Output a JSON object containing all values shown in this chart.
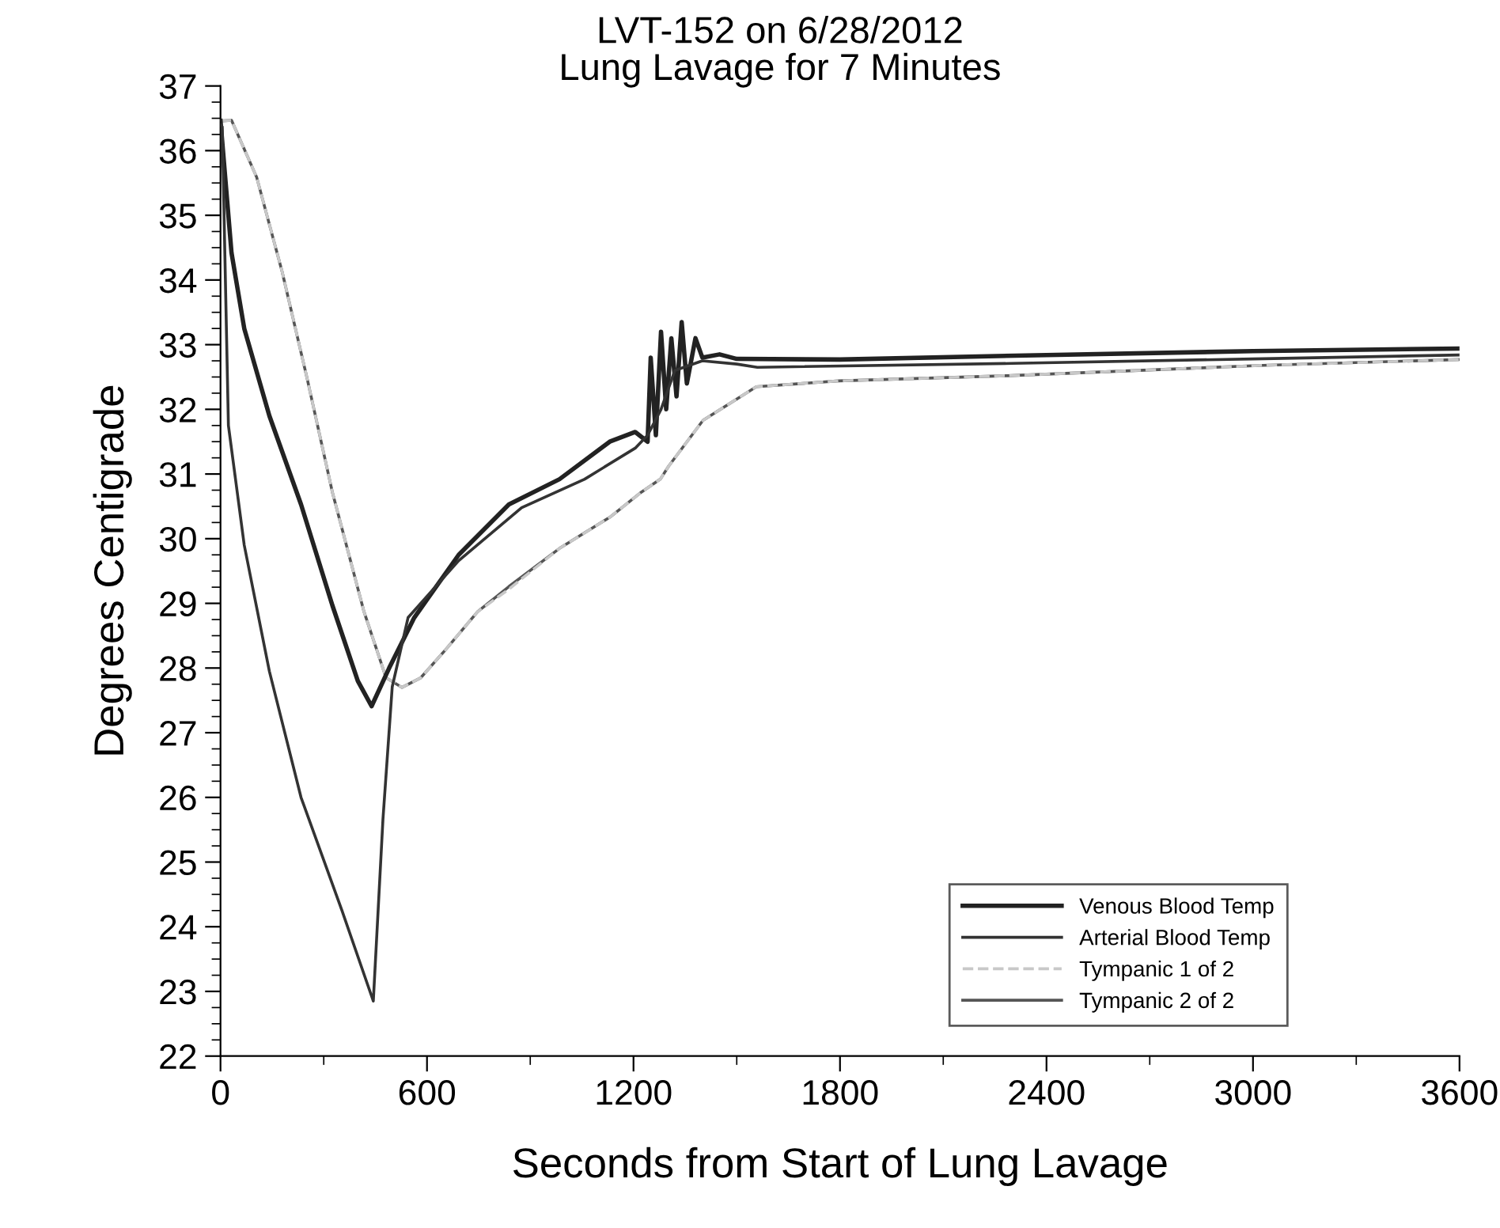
{
  "chart_data": {
    "type": "line",
    "title": "LVT-152 on 6/28/2012",
    "subtitle": "Lung Lavage for 7 Minutes",
    "xlabel": "Seconds from Start of Lung Lavage",
    "ylabel": "Degrees Centigrade",
    "xlim": [
      0,
      3600
    ],
    "xticks": [
      0,
      600,
      1200,
      1800,
      2400,
      3000,
      3600
    ],
    "ylim": [
      22,
      37
    ],
    "yticks": [
      22,
      23,
      24,
      25,
      26,
      27,
      28,
      29,
      30,
      31,
      32,
      33,
      34,
      35,
      36,
      37
    ],
    "grid": false,
    "legend": "bottom right",
    "marker": "none",
    "series": [
      {
        "name": "Venous Blood Temp",
        "color": "#222222",
        "line_style": "solid",
        "x": [
          0,
          32,
          69,
          142,
          234,
          325,
          399,
          439,
          490,
          563,
          692,
          838,
          985,
          1131,
          1205,
          1241,
          1250,
          1265,
          1280,
          1295,
          1310,
          1325,
          1340,
          1355,
          1380,
          1400,
          1450,
          1500,
          1800,
          2400,
          3000,
          3600
        ],
        "values": [
          36.46,
          34.42,
          33.25,
          31.9,
          30.53,
          28.97,
          27.8,
          27.41,
          28.0,
          28.78,
          29.75,
          30.53,
          30.92,
          31.5,
          31.65,
          31.5,
          32.8,
          31.6,
          33.2,
          32.0,
          33.1,
          32.2,
          33.35,
          32.4,
          33.1,
          32.8,
          32.85,
          32.78,
          32.77,
          32.84,
          32.9,
          32.94
        ]
      },
      {
        "name": "Arterial Blood Temp",
        "color": "#333333",
        "line_style": "solid",
        "x": [
          0,
          5,
          23,
          69,
          142,
          234,
          353,
          444,
          472,
          499,
          545,
          692,
          875,
          1058,
          1205,
          1241,
          1280,
          1320,
          1400,
          1500,
          1560,
          2300,
          3000,
          3600
        ],
        "values": [
          36.4,
          36.37,
          31.75,
          29.9,
          27.95,
          26.0,
          24.25,
          22.85,
          25.66,
          27.71,
          28.78,
          29.66,
          30.48,
          30.92,
          31.4,
          31.6,
          32.0,
          32.6,
          32.75,
          32.7,
          32.65,
          32.71,
          32.78,
          32.84
        ]
      },
      {
        "name": "Tympanic 1 of 2",
        "color": "#c8c8c8",
        "line_style": "dashed",
        "x": [
          0,
          32,
          105,
          179,
          252,
          325,
          417,
          481,
          527,
          582,
          655,
          747,
          838,
          985,
          1131,
          1223,
          1278,
          1302,
          1402,
          1557,
          1796,
          2286,
          3029,
          3600
        ],
        "values": [
          36.46,
          36.47,
          35.59,
          34.13,
          32.47,
          30.72,
          28.87,
          27.85,
          27.7,
          27.85,
          28.29,
          28.87,
          29.22,
          29.85,
          30.33,
          30.72,
          30.92,
          31.12,
          31.83,
          32.35,
          32.44,
          32.52,
          32.68,
          32.77
        ]
      },
      {
        "name": "Tympanic 2 of 2",
        "color": "#555555",
        "line_style": "solid",
        "x": [
          0,
          32,
          105,
          179,
          252,
          325,
          417,
          481,
          527,
          582,
          655,
          747,
          838,
          985,
          1131,
          1223,
          1278,
          1302,
          1402,
          1557,
          1796,
          2286,
          3029,
          3600
        ],
        "values": [
          36.46,
          36.47,
          35.59,
          34.13,
          32.47,
          30.72,
          28.87,
          27.85,
          27.7,
          27.85,
          28.29,
          28.87,
          29.26,
          29.85,
          30.33,
          30.72,
          30.92,
          31.12,
          31.83,
          32.35,
          32.44,
          32.52,
          32.68,
          32.77
        ]
      }
    ]
  }
}
